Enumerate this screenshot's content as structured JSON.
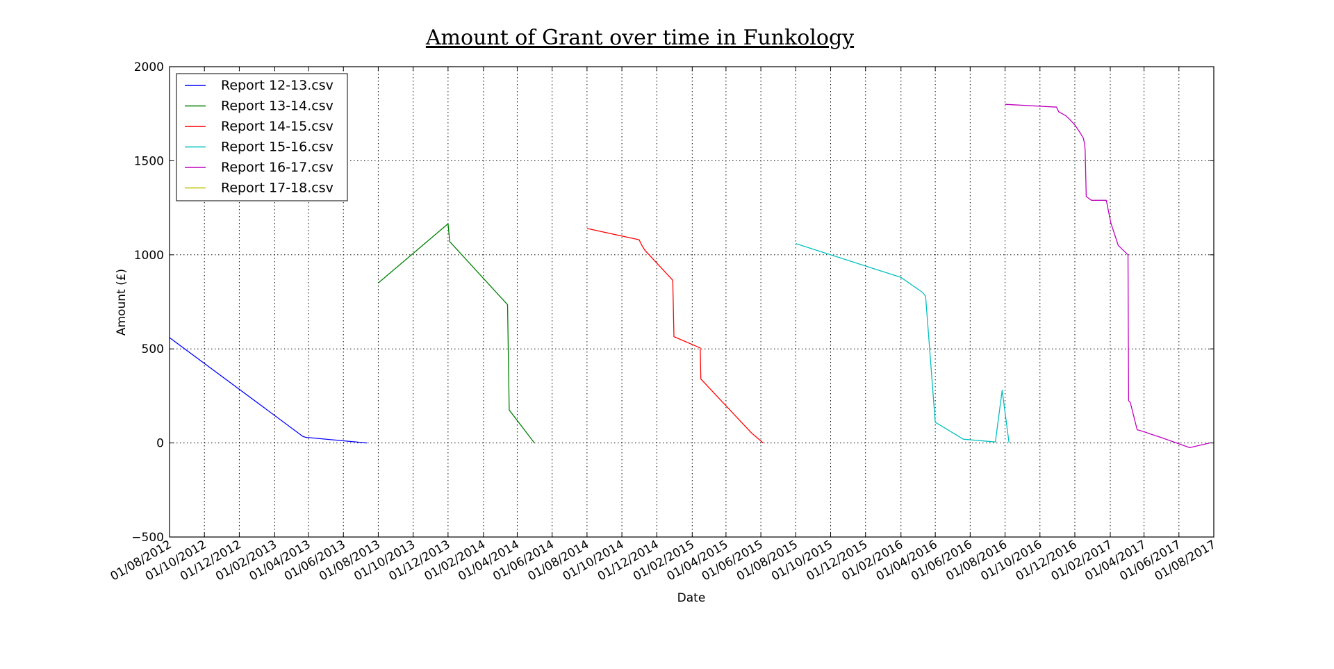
{
  "chart_data": {
    "type": "line",
    "title": "Amount of Grant over time in Funkology",
    "xlabel": "Date",
    "ylabel": "Amount (£)",
    "ylim": [
      -500,
      2000
    ],
    "yticks": [
      -500,
      0,
      500,
      1000,
      1500,
      2000
    ],
    "xlim": [
      "2012-08-01",
      "2017-08-01"
    ],
    "xticks": [
      "2012-08-01",
      "2012-10-01",
      "2012-12-01",
      "2013-02-01",
      "2013-04-01",
      "2013-06-01",
      "2013-08-01",
      "2013-10-01",
      "2013-12-01",
      "2014-02-01",
      "2014-04-01",
      "2014-06-01",
      "2014-08-01",
      "2014-10-01",
      "2014-12-01",
      "2015-02-01",
      "2015-04-01",
      "2015-06-01",
      "2015-08-01",
      "2015-10-01",
      "2015-12-01",
      "2016-02-01",
      "2016-04-01",
      "2016-06-01",
      "2016-08-01",
      "2016-10-01",
      "2016-12-01",
      "2017-02-01",
      "2017-04-01",
      "2017-06-01",
      "2017-08-01"
    ],
    "xtick_labels": [
      "01/08/2012",
      "01/10/2012",
      "01/12/2012",
      "01/02/2013",
      "01/04/2013",
      "01/06/2013",
      "01/08/2013",
      "01/10/2013",
      "01/12/2013",
      "01/02/2014",
      "01/04/2014",
      "01/06/2014",
      "01/08/2014",
      "01/10/2014",
      "01/12/2014",
      "01/02/2015",
      "01/04/2015",
      "01/06/2015",
      "01/08/2015",
      "01/10/2015",
      "01/12/2015",
      "01/02/2016",
      "01/04/2016",
      "01/06/2016",
      "01/08/2016",
      "01/10/2016",
      "01/12/2016",
      "01/02/2017",
      "01/04/2017",
      "01/06/2017",
      "01/08/2017"
    ],
    "grid": true,
    "legend_position": "top-left",
    "series": [
      {
        "name": "Report 12-13.csv",
        "color": "#0000ff",
        "x": [
          "2012-08-01",
          "2013-03-22",
          "2013-03-27",
          "2013-07-12"
        ],
        "y": [
          560,
          35,
          30,
          0
        ]
      },
      {
        "name": "Report 13-14.csv",
        "color": "#008000",
        "x": [
          "2013-08-01",
          "2013-12-01",
          "2013-12-04",
          "2014-03-15",
          "2014-03-18",
          "2014-05-01"
        ],
        "y": [
          850,
          1165,
          1070,
          735,
          175,
          0
        ]
      },
      {
        "name": "Report 14-15.csv",
        "color": "#ff0000",
        "x": [
          "2014-08-01",
          "2014-10-31",
          "2014-11-05",
          "2014-11-10",
          "2014-12-29",
          "2014-12-31",
          "2015-02-15",
          "2015-02-16",
          "2015-05-15",
          "2015-06-05"
        ],
        "y": [
          1140,
          1080,
          1050,
          1025,
          865,
          565,
          505,
          340,
          55,
          0
        ]
      },
      {
        "name": "Report 15-16.csv",
        "color": "#00bfbf",
        "x": [
          "2015-08-01",
          "2016-02-01",
          "2016-03-10",
          "2016-03-15",
          "2016-04-01",
          "2016-05-20",
          "2016-07-15",
          "2016-07-27",
          "2016-08-08"
        ],
        "y": [
          1060,
          880,
          800,
          780,
          110,
          20,
          5,
          280,
          0
        ]
      },
      {
        "name": "Report 16-17.csv",
        "color": "#bf00bf",
        "x": [
          "2016-08-01",
          "2016-10-30",
          "2016-11-03",
          "2016-11-15",
          "2016-11-22",
          "2016-12-01",
          "2016-12-10",
          "2016-12-16",
          "2016-12-18",
          "2016-12-19",
          "2016-12-21",
          "2016-12-30",
          "2017-01-25",
          "2017-02-02",
          "2017-02-15",
          "2017-03-04",
          "2017-03-05",
          "2017-03-08",
          "2017-03-20",
          "2017-04-01",
          "2017-04-10",
          "2017-04-30",
          "2017-06-20",
          "2017-07-25"
        ],
        "y": [
          1800,
          1785,
          1760,
          1740,
          1720,
          1690,
          1650,
          1620,
          1590,
          1560,
          1310,
          1290,
          1290,
          1170,
          1050,
          1000,
          225,
          215,
          70,
          60,
          50,
          30,
          -25,
          0
        ]
      },
      {
        "name": "Report 17-18.csv",
        "color": "#bfbf00",
        "x": [],
        "y": []
      }
    ]
  }
}
